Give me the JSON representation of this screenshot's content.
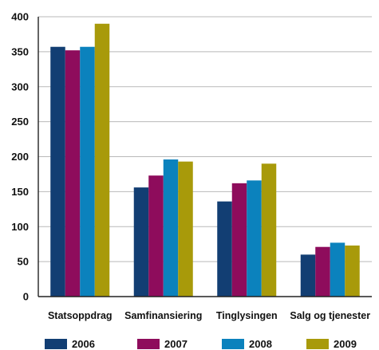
{
  "chart_data": {
    "type": "bar",
    "title": "",
    "xlabel": "",
    "ylabel": "",
    "ylim": [
      0,
      400
    ],
    "yticks": [
      0,
      50,
      100,
      150,
      200,
      250,
      300,
      350,
      400
    ],
    "grid": true,
    "legend_position": "bottom",
    "categories": [
      "Statsoppdrag",
      "Samfinansiering",
      "Tinglysingen",
      "Salg og tjenester"
    ],
    "series": [
      {
        "name": "2006",
        "color": "#123e73",
        "values": [
          357,
          156,
          136,
          60
        ]
      },
      {
        "name": "2007",
        "color": "#8e0c5c",
        "values": [
          352,
          173,
          162,
          71
        ]
      },
      {
        "name": "2008",
        "color": "#0b82bd",
        "values": [
          357,
          196,
          166,
          77
        ]
      },
      {
        "name": "2009",
        "color": "#a89a0a",
        "values": [
          390,
          193,
          190,
          73
        ]
      }
    ]
  }
}
